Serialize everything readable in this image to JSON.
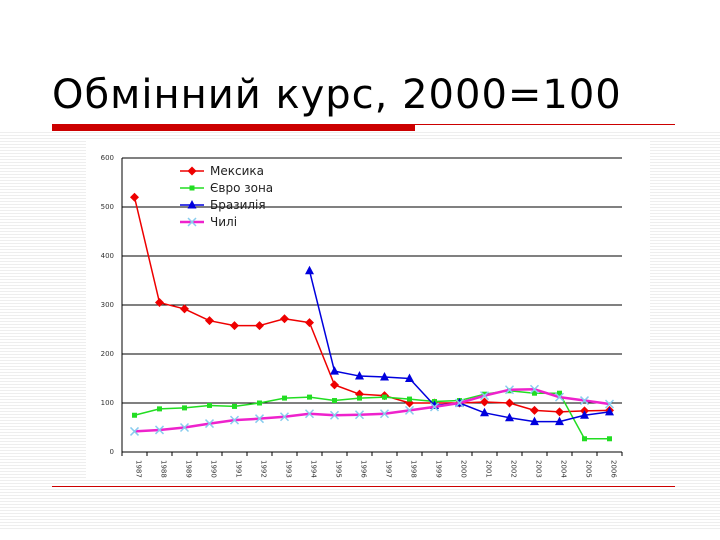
{
  "slide": {
    "title": "Обмінний курс, 2000=100"
  },
  "colors": {
    "accent": "#cc0000"
  },
  "chart_data": {
    "type": "line",
    "title": "",
    "xlabel": "",
    "ylabel": "",
    "ylim": [
      0,
      600
    ],
    "yticks": [
      "0",
      "100",
      "200",
      "300",
      "400",
      "500",
      "600"
    ],
    "grid": true,
    "legend": "top-left",
    "categories": [
      "1987",
      "1988",
      "1989",
      "1990",
      "1991",
      "1992",
      "1993",
      "1994",
      "1995",
      "1996",
      "1997",
      "1998",
      "1999",
      "2000",
      "2001",
      "2002",
      "2003",
      "2004",
      "2005",
      "2006"
    ],
    "series": [
      {
        "name": "Мексика",
        "color": "#ee0000",
        "marker": "diamond",
        "values": [
          520,
          305,
          292,
          268,
          258,
          258,
          272,
          264,
          137,
          118,
          115,
          100,
          100,
          100,
          102,
          100,
          85,
          82,
          84,
          85
        ]
      },
      {
        "name": "Євро зона",
        "color": "#22dd22",
        "marker": "square",
        "values": [
          75,
          88,
          90,
          95,
          93,
          100,
          110,
          112,
          105,
          110,
          112,
          108,
          103,
          105,
          118,
          125,
          120,
          120,
          27,
          27
        ]
      },
      {
        "name": "Бразилія",
        "color": "#0000dd",
        "marker": "triangle",
        "values": [
          null,
          null,
          null,
          null,
          null,
          null,
          null,
          370,
          165,
          155,
          153,
          150,
          95,
          100,
          80,
          70,
          62,
          62,
          75,
          82
        ]
      },
      {
        "name": "Чилі",
        "color": "#ee22cc",
        "marker": "x",
        "values": [
          42,
          45,
          50,
          58,
          65,
          68,
          72,
          78,
          75,
          76,
          78,
          85,
          92,
          100,
          115,
          127,
          128,
          112,
          105,
          98
        ]
      }
    ]
  }
}
